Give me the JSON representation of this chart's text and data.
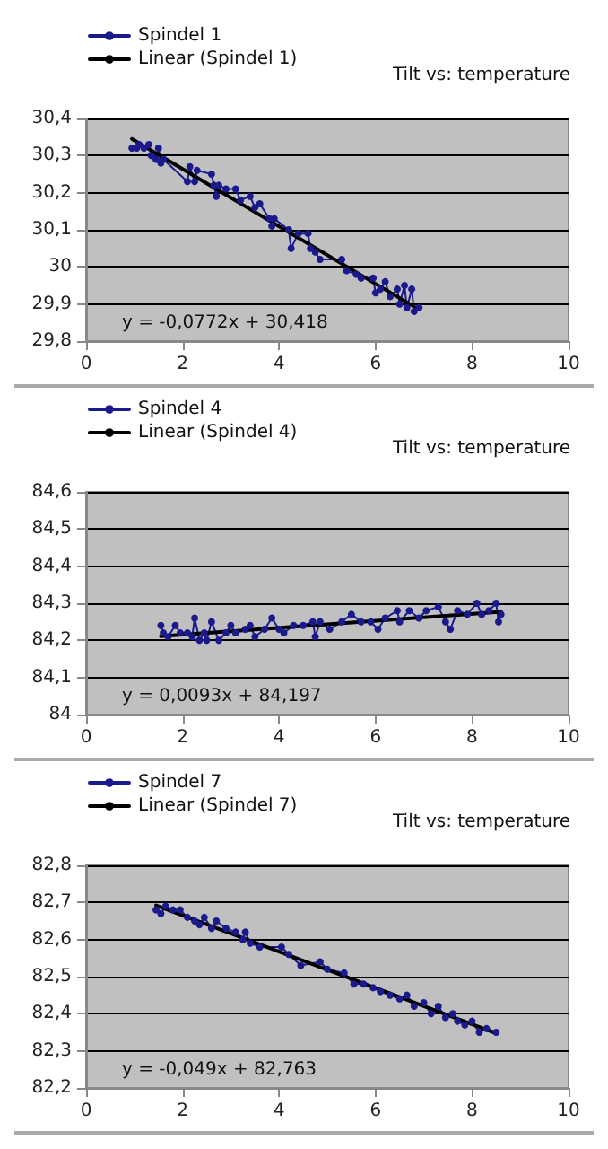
{
  "chart_data": [
    {
      "type": "line",
      "title": "Tilt vs: temperature",
      "annotations": [
        "y = -0,0772x + 30,418"
      ],
      "xlim": [
        0,
        10
      ],
      "xticks": [
        0,
        2,
        4,
        6,
        8,
        10
      ],
      "ylim": [
        29.8,
        30.4
      ],
      "yticks": [
        {
          "value": 29.8,
          "label": "29,8"
        },
        {
          "value": 29.9,
          "label": "29,9"
        },
        30,
        {
          "value": 30.1,
          "label": "30,1"
        },
        {
          "value": 30.2,
          "label": "30,2"
        },
        {
          "value": 30.3,
          "label": "30,3"
        },
        {
          "value": 30.4,
          "label": "30,4"
        }
      ],
      "grid": "y",
      "legend": "top left",
      "marker": "circle",
      "line_style": "solid",
      "series": [
        {
          "name": "Spindel 1",
          "color": "#1a1a8c",
          "x": [
            0.95,
            1.05,
            1.1,
            1.2,
            1.3,
            1.35,
            1.45,
            1.5,
            1.55,
            1.6,
            2.1,
            2.15,
            2.25,
            2.3,
            2.6,
            2.65,
            2.7,
            2.75,
            2.9,
            3.1,
            3.2,
            3.4,
            3.5,
            3.6,
            3.8,
            3.85,
            3.9,
            4.2,
            4.25,
            4.4,
            4.6,
            4.65,
            4.75,
            4.85,
            5.3,
            5.4,
            5.6,
            5.7,
            5.95,
            6.0,
            6.1,
            6.2,
            6.3,
            6.45,
            6.5,
            6.6,
            6.65,
            6.75,
            6.8,
            6.9
          ],
          "values": [
            30.32,
            30.32,
            30.33,
            30.32,
            30.33,
            30.3,
            30.29,
            30.32,
            30.28,
            30.29,
            30.23,
            30.27,
            30.23,
            30.26,
            30.25,
            30.22,
            30.19,
            30.22,
            30.21,
            30.21,
            30.18,
            30.19,
            30.16,
            30.17,
            30.13,
            30.11,
            30.13,
            30.1,
            30.05,
            30.09,
            30.09,
            30.05,
            30.04,
            30.02,
            30.02,
            29.99,
            29.98,
            29.97,
            29.97,
            29.93,
            29.94,
            29.96,
            29.92,
            29.94,
            29.9,
            29.95,
            29.89,
            29.94,
            29.88,
            29.89
          ]
        },
        {
          "name": "Linear (Spindel 1)",
          "color": "#000000",
          "marker": "none",
          "x": [
            0.95,
            6.9
          ],
          "values": [
            30.345,
            29.885
          ]
        }
      ]
    },
    {
      "type": "line",
      "title": "Tilt vs: temperature",
      "annotations": [
        "y = 0,0093x + 84,197"
      ],
      "xlim": [
        0,
        10
      ],
      "xticks": [
        0,
        2,
        4,
        6,
        8,
        10
      ],
      "ylim": [
        84,
        84.6
      ],
      "yticks": [
        84,
        {
          "value": 84.1,
          "label": "84,1"
        },
        {
          "value": 84.2,
          "label": "84,2"
        },
        {
          "value": 84.3,
          "label": "84,3"
        },
        {
          "value": 84.4,
          "label": "84,4"
        },
        {
          "value": 84.5,
          "label": "84,5"
        },
        {
          "value": 84.6,
          "label": "84,6"
        }
      ],
      "grid": "y",
      "legend": "top left",
      "marker": "circle",
      "line_style": "solid",
      "series": [
        {
          "name": "Spindel 4",
          "color": "#1a1a8c",
          "x": [
            1.55,
            1.6,
            1.7,
            1.85,
            1.95,
            2.1,
            2.2,
            2.25,
            2.35,
            2.45,
            2.5,
            2.6,
            2.75,
            2.9,
            3.0,
            3.1,
            3.3,
            3.4,
            3.5,
            3.7,
            3.85,
            4.0,
            4.1,
            4.3,
            4.5,
            4.7,
            4.75,
            4.85,
            5.05,
            5.3,
            5.5,
            5.7,
            5.9,
            6.05,
            6.2,
            6.45,
            6.5,
            6.7,
            6.9,
            7.05,
            7.3,
            7.45,
            7.55,
            7.7,
            7.9,
            8.1,
            8.2,
            8.35,
            8.5,
            8.55,
            8.6
          ],
          "values": [
            84.24,
            84.22,
            84.21,
            84.24,
            84.22,
            84.22,
            84.21,
            84.26,
            84.2,
            84.22,
            84.2,
            84.25,
            84.2,
            84.22,
            84.24,
            84.22,
            84.23,
            84.24,
            84.21,
            84.23,
            84.26,
            84.23,
            84.22,
            84.24,
            84.24,
            84.25,
            84.21,
            84.25,
            84.23,
            84.25,
            84.27,
            84.25,
            84.25,
            84.23,
            84.26,
            84.28,
            84.25,
            84.28,
            84.26,
            84.28,
            84.29,
            84.25,
            84.23,
            84.28,
            84.27,
            84.3,
            84.27,
            84.28,
            84.3,
            84.25,
            84.27
          ]
        },
        {
          "name": "Linear (Spindel 4)",
          "color": "#000000",
          "marker": "none",
          "x": [
            1.55,
            8.6
          ],
          "values": [
            84.211,
            84.277
          ]
        }
      ]
    },
    {
      "type": "line",
      "title": "Tilt vs: temperature",
      "annotations": [
        "y = -0,049x + 82,763"
      ],
      "xlim": [
        0,
        10
      ],
      "xticks": [
        0,
        2,
        4,
        6,
        8,
        10
      ],
      "ylim": [
        82.2,
        82.8
      ],
      "yticks": [
        {
          "value": 82.2,
          "label": "82,2"
        },
        {
          "value": 82.3,
          "label": "82,3"
        },
        {
          "value": 82.4,
          "label": "82,4"
        },
        {
          "value": 82.5,
          "label": "82,5"
        },
        {
          "value": 82.6,
          "label": "82,6"
        },
        {
          "value": 82.7,
          "label": "82,7"
        },
        {
          "value": 82.8,
          "label": "82,8"
        }
      ],
      "grid": "y",
      "legend": "top left",
      "marker": "circle",
      "line_style": "solid",
      "series": [
        {
          "name": "Spindel 7",
          "color": "#1a1a8c",
          "x": [
            1.45,
            1.55,
            1.65,
            1.8,
            1.95,
            2.1,
            2.25,
            2.35,
            2.45,
            2.6,
            2.7,
            2.9,
            3.1,
            3.25,
            3.3,
            3.4,
            3.6,
            4.05,
            4.2,
            4.45,
            4.85,
            5.0,
            5.35,
            5.55,
            5.75,
            5.95,
            6.1,
            6.3,
            6.5,
            6.65,
            6.8,
            7.0,
            7.15,
            7.3,
            7.45,
            7.6,
            7.7,
            7.85,
            8.0,
            8.15,
            8.3,
            8.5
          ],
          "values": [
            82.68,
            82.67,
            82.69,
            82.68,
            82.68,
            82.66,
            82.65,
            82.64,
            82.66,
            82.63,
            82.65,
            82.63,
            82.62,
            82.6,
            82.62,
            82.59,
            82.58,
            82.58,
            82.56,
            82.53,
            82.54,
            82.52,
            82.51,
            82.48,
            82.48,
            82.47,
            82.46,
            82.45,
            82.44,
            82.45,
            82.42,
            82.43,
            82.4,
            82.42,
            82.39,
            82.4,
            82.38,
            82.37,
            82.38,
            82.35,
            82.36,
            82.35
          ]
        },
        {
          "name": "Linear (Spindel 7)",
          "color": "#000000",
          "marker": "none",
          "x": [
            1.45,
            8.5
          ],
          "values": [
            82.692,
            82.347
          ]
        }
      ]
    }
  ]
}
